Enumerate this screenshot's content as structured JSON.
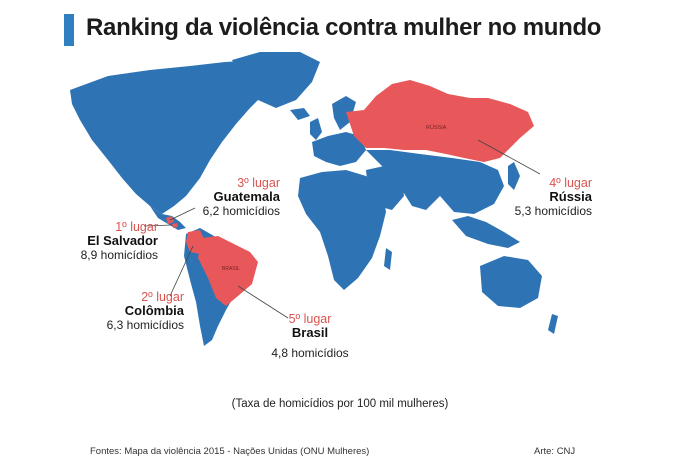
{
  "title": "Ranking da violência contra mulher no mundo",
  "colors": {
    "land": "#2e74b5",
    "highlight": "#e8585a",
    "accent_bar": "#2f7fc1",
    "rank_text": "#d9534f",
    "leader": "#444444"
  },
  "map_labels": {
    "russia": "RÚSSIA",
    "brazil": "BRASIL"
  },
  "rankings": [
    {
      "rank": "1º lugar",
      "country": "El Salvador",
      "stat": "8,9 homicídios"
    },
    {
      "rank": "2º lugar",
      "country": "Colômbia",
      "stat": "6,3 homicídios"
    },
    {
      "rank": "3º lugar",
      "country": "Guatemala",
      "stat": "6,2 homicídios"
    },
    {
      "rank": "4º lugar",
      "country": "Rússia",
      "stat": "5,3 homicídios"
    },
    {
      "rank": "5º lugar",
      "country": "Brasil",
      "stat": "4,8 homicídios"
    }
  ],
  "note": "(Taxa de homicídios por 100 mil mulheres)",
  "footer": {
    "source": "Fontes: Mapa da violência 2015 - Nações Unidas (ONU Mulheres)",
    "credit": "Arte: CNJ"
  }
}
